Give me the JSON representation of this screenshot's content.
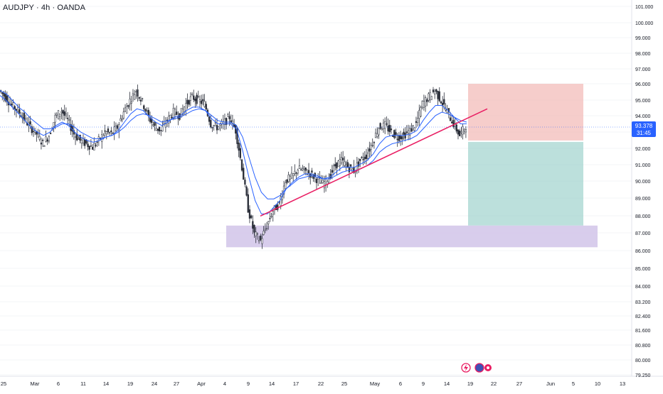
{
  "header": {
    "symbol_title": "AUDJPY · 4h · OANDA"
  },
  "price_axis": {
    "current_price": "93.378",
    "countdown": "31:45"
  },
  "footer_icons": [
    "lightning-icon",
    "news-avatar-icon"
  ],
  "colors": {
    "candle": "#2a2e39",
    "ema_fast": "#2962ff",
    "ema_slow": "#2962ff",
    "trendline": "#e91e63",
    "stop_zone": "#f2b8b5",
    "target_zone": "#a5d6d0",
    "demand_zone": "#d1c4e9",
    "price_badge": "#2962ff"
  },
  "chart_data": {
    "type": "line",
    "y_ticks": [
      "101.000",
      "100.000",
      "99.000",
      "98.000",
      "97.000",
      "96.000",
      "95.000",
      "94.000",
      "93.000",
      "92.000",
      "91.000",
      "90.000",
      "89.000",
      "88.000",
      "87.000",
      "86.000",
      "85.000",
      "84.000",
      "83.200",
      "82.400",
      "81.600",
      "80.800",
      "80.000",
      "79.250"
    ],
    "x_ticks": [
      "25",
      "Mar",
      "6",
      "11",
      "14",
      "19",
      "24",
      "27",
      "Apr",
      "4",
      "9",
      "14",
      "17",
      "22",
      "25",
      "May",
      "6",
      "9",
      "14",
      "19",
      "22",
      "27",
      "Jun",
      "5",
      "10",
      "13"
    ],
    "price_path": [
      95.6,
      95.2,
      94.7,
      94.4,
      93.9,
      93.4,
      93.0,
      92.4,
      92.9,
      94.0,
      94.4,
      93.8,
      93.0,
      92.6,
      92.4,
      92.2,
      92.6,
      93.1,
      93.0,
      93.4,
      94.3,
      95.0,
      95.6,
      94.9,
      94.0,
      93.4,
      93.2,
      93.8,
      94.3,
      94.1,
      94.8,
      95.2,
      95.0,
      94.8,
      93.6,
      93.4,
      93.6,
      94.0,
      93.2,
      91.0,
      88.5,
      87.0,
      86.6,
      87.5,
      88.4,
      88.8,
      90.2,
      90.4,
      90.9,
      90.8,
      90.6,
      90.3,
      90.0,
      90.4,
      91.1,
      91.4,
      91.0,
      90.8,
      91.4,
      91.7,
      92.5,
      93.4,
      93.5,
      93.1,
      92.8,
      92.9,
      93.2,
      93.6,
      94.8,
      95.2,
      95.6,
      95.0,
      94.3,
      93.6,
      92.9,
      93.5
    ],
    "ema_fast": [
      95.3,
      95.0,
      94.6,
      94.2,
      93.8,
      93.4,
      93.1,
      92.9,
      93.1,
      93.5,
      93.7,
      93.5,
      93.1,
      92.8,
      92.6,
      92.5,
      92.6,
      92.8,
      92.9,
      93.2,
      93.7,
      94.2,
      94.5,
      94.4,
      94.0,
      93.7,
      93.5,
      93.7,
      94.0,
      94.1,
      94.4,
      94.6,
      94.6,
      94.4,
      93.9,
      93.6,
      93.6,
      93.6,
      93.3,
      92.0,
      90.4,
      89.0,
      88.2,
      88.2,
      88.6,
      89.0,
      89.7,
      90.1,
      90.4,
      90.6,
      90.6,
      90.5,
      90.3,
      90.4,
      90.7,
      91.0,
      91.0,
      91.0,
      91.2,
      91.4,
      91.8,
      92.4,
      92.8,
      92.9,
      92.9,
      92.9,
      93.0,
      93.2,
      93.8,
      94.3,
      94.7,
      94.7,
      94.4,
      94.0,
      93.6,
      93.6
    ],
    "ema_slow": [
      95.6,
      95.4,
      95.0,
      94.6,
      94.3,
      93.9,
      93.6,
      93.3,
      93.3,
      93.4,
      93.6,
      93.6,
      93.4,
      93.1,
      92.9,
      92.7,
      92.7,
      92.8,
      92.9,
      93.1,
      93.4,
      93.8,
      94.1,
      94.2,
      94.1,
      93.9,
      93.7,
      93.8,
      93.9,
      94.0,
      94.2,
      94.4,
      94.5,
      94.4,
      94.1,
      93.8,
      93.7,
      93.7,
      93.5,
      92.8,
      91.6,
      90.4,
      89.5,
      89.1,
      89.1,
      89.3,
      89.7,
      90.0,
      90.3,
      90.4,
      90.5,
      90.4,
      90.3,
      90.3,
      90.5,
      90.7,
      90.8,
      90.8,
      90.9,
      91.1,
      91.4,
      91.9,
      92.2,
      92.4,
      92.5,
      92.6,
      92.7,
      92.9,
      93.3,
      93.7,
      94.1,
      94.3,
      94.2,
      94.0,
      93.8,
      93.7
    ],
    "trendline": {
      "from": [
        87.9
      ],
      "to": [
        94.2
      ]
    },
    "zones": {
      "stop": [
        92.6,
        96.0
      ],
      "target": [
        87.5,
        92.6
      ],
      "demand": [
        86.2,
        87.5
      ]
    }
  }
}
